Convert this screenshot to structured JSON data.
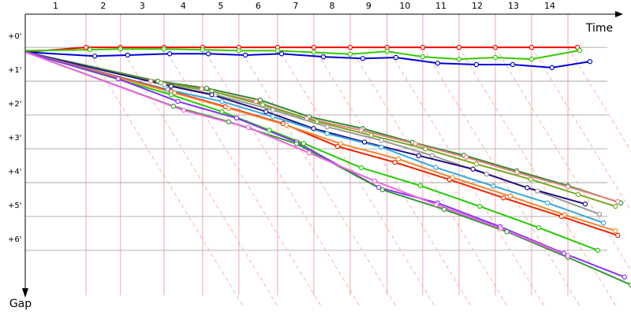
{
  "chart_data": {
    "type": "line",
    "x_label": "Time",
    "y_label": "Gap",
    "xlim": [
      0,
      17.86
    ],
    "ylim": [
      -0.98,
      7.33
    ],
    "yticks": [
      {
        "value": 0,
        "label": "+0'"
      },
      {
        "value": 1,
        "label": "+1'"
      },
      {
        "value": 2,
        "label": "+2'"
      },
      {
        "value": 3,
        "label": "+3'"
      },
      {
        "value": 4,
        "label": "+4'"
      },
      {
        "value": 5,
        "label": "+5'"
      },
      {
        "value": 6,
        "label": "+6'"
      }
    ],
    "lap_labels": [
      "1",
      "2",
      "3",
      "4",
      "5",
      "6",
      "7",
      "8",
      "9",
      "10",
      "11",
      "12",
      "13",
      "14"
    ],
    "lap_times": [
      1.79,
      2.81,
      4.09,
      5.23,
      6.3,
      7.44,
      8.51,
      9.58,
      10.67,
      11.72,
      12.79,
      13.86,
      14.93,
      16.0
    ],
    "grid": true,
    "series": [
      {
        "color": "#ff0000",
        "x": [
          0,
          1.79,
          2.81,
          4.09,
          5.23,
          6.3,
          7.44,
          8.51,
          9.58,
          10.67,
          11.72,
          12.79,
          13.86,
          14.93,
          16.28
        ],
        "values": [
          0.14,
          0,
          0,
          0,
          0,
          0,
          0,
          0,
          0,
          0,
          0,
          0,
          0,
          0,
          0
        ]
      },
      {
        "color": "#33cc00",
        "x": [
          0,
          1.91,
          2.81,
          4.09,
          5.23,
          6.3,
          7.44,
          8.51,
          9.58,
          10.67,
          11.72,
          12.79,
          13.86,
          14.93,
          16.35
        ],
        "values": [
          0.1,
          0.07,
          0.05,
          0.05,
          0.07,
          0.1,
          0.1,
          0.15,
          0.2,
          0.12,
          0.28,
          0.35,
          0.3,
          0.35,
          0.09
        ]
      },
      {
        "color": "#0000dd",
        "x": [
          0,
          2.05,
          3.02,
          4.26,
          5.4,
          6.49,
          7.56,
          8.79,
          9.95,
          10.93,
          12.16,
          13.3,
          14.37,
          15.53,
          16.65
        ],
        "values": [
          0.14,
          0.26,
          0.23,
          0.19,
          0.19,
          0.23,
          0.19,
          0.28,
          0.33,
          0.3,
          0.47,
          0.51,
          0.51,
          0.6,
          0.42
        ]
      },
      {
        "color": "#2e8b2e",
        "x": [
          0,
          3.91,
          5.35,
          6.93,
          8.37,
          9.95,
          11.42,
          12.93,
          14.49,
          16.0,
          17.56
        ],
        "values": [
          0.14,
          1.0,
          1.21,
          1.56,
          2.05,
          2.4,
          2.81,
          3.19,
          3.65,
          4.09,
          4.6
        ]
      },
      {
        "color": "#e88080",
        "x": [
          0,
          3.7,
          5.2,
          6.8,
          8.3,
          9.9,
          11.5,
          13.0,
          14.5,
          16.0,
          17.47
        ],
        "values": [
          0.14,
          1.0,
          1.23,
          1.6,
          2.1,
          2.45,
          2.85,
          3.25,
          3.7,
          4.12,
          4.56
        ]
      },
      {
        "color": "#77aa22",
        "x": [
          0,
          4.0,
          5.5,
          7.0,
          8.6,
          10.2,
          11.8,
          13.3,
          14.9,
          16.3,
          17.4
        ],
        "values": [
          0.14,
          1.05,
          1.3,
          1.7,
          2.2,
          2.6,
          3.0,
          3.45,
          3.9,
          4.35,
          4.7
        ]
      },
      {
        "color": "#999999",
        "x": [
          0,
          4.1,
          5.6,
          7.3,
          8.9,
          10.5,
          12.0,
          13.6,
          15.1,
          16.93
        ],
        "values": [
          0.14,
          1.1,
          1.4,
          1.85,
          2.35,
          2.75,
          3.2,
          3.75,
          4.25,
          4.93
        ]
      },
      {
        "color": "#221188",
        "x": [
          0,
          4.3,
          5.5,
          7.1,
          8.5,
          10.0,
          11.6,
          13.2,
          14.8,
          16.51
        ],
        "values": [
          0.14,
          1.15,
          1.4,
          1.9,
          2.4,
          2.8,
          3.2,
          3.6,
          4.15,
          4.63
        ]
      },
      {
        "color": "#33aadd",
        "x": [
          0,
          4.2,
          5.8,
          7.3,
          8.9,
          10.5,
          12.1,
          13.8,
          15.4,
          17.05
        ],
        "values": [
          0.14,
          1.25,
          1.6,
          2.05,
          2.55,
          2.95,
          3.55,
          4.1,
          4.6,
          5.19
        ]
      },
      {
        "color": "#ee2200",
        "x": [
          0,
          4.3,
          5.9,
          7.6,
          9.21,
          10.9,
          12.51,
          14.1,
          15.81,
          17.47
        ],
        "values": [
          0.14,
          1.3,
          1.75,
          2.25,
          2.93,
          3.4,
          3.91,
          4.45,
          5.0,
          5.56
        ]
      },
      {
        "color": "#ee8833",
        "x": [
          0,
          4.4,
          6.0,
          7.7,
          9.3,
          11.0,
          12.6,
          14.3,
          15.9,
          17.4
        ],
        "values": [
          0.14,
          1.35,
          1.8,
          2.3,
          2.85,
          3.3,
          3.85,
          4.4,
          4.95,
          5.42
        ]
      },
      {
        "color": "#22cc00",
        "x": [
          0,
          4.3,
          5.8,
          7.2,
          8.21,
          9.91,
          11.65,
          13.4,
          15.14,
          16.88
        ],
        "values": [
          0.14,
          1.4,
          1.9,
          2.45,
          2.84,
          3.56,
          4.09,
          4.7,
          5.33,
          6.0
        ]
      },
      {
        "color": "#8833ff",
        "x": [
          0,
          2.74,
          4.5,
          6.23,
          8.0,
          10.42,
          12.16,
          14.0,
          15.88,
          17.67
        ],
        "values": [
          0.14,
          0.93,
          1.6,
          2.09,
          2.8,
          4.14,
          4.6,
          5.3,
          6.09,
          6.79
        ]
      },
      {
        "color": "#339933",
        "x": [
          0,
          4.37,
          6.0,
          8.0,
          10.53,
          12.35,
          14.2,
          16.0,
          17.86
        ],
        "values": [
          0.14,
          1.74,
          2.2,
          2.85,
          4.21,
          4.79,
          5.45,
          6.21,
          7.02
        ]
      },
      {
        "color": "#ee66dd",
        "x": [
          0,
          4.67,
          6.58,
          8.37,
          10.3,
          12.12,
          14.02,
          16.0
        ],
        "values": [
          0.14,
          1.86,
          2.37,
          3.12,
          3.95,
          4.65,
          5.35,
          6.16
        ]
      }
    ]
  }
}
